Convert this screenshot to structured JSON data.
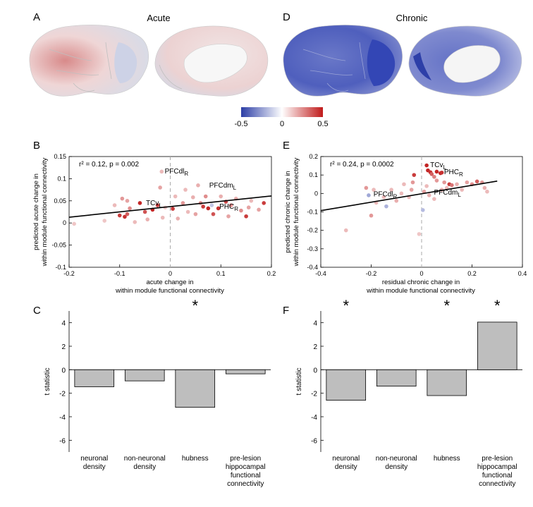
{
  "panel_letters": {
    "a": "A",
    "b": "B",
    "c": "C",
    "d": "D",
    "e": "E",
    "f": "F"
  },
  "brain_titles": {
    "acute": "Acute",
    "chronic": "Chronic"
  },
  "colorbar": {
    "ticks": [
      "-0.5",
      "0",
      "0.5"
    ],
    "colors": {
      "negative": "#2c3ea6",
      "zero": "#ffffff",
      "positive": "#c01a1a"
    }
  },
  "chart_data": [
    {
      "panel": "B",
      "type": "scatter",
      "stats": "r² = 0.12, p = 0.002",
      "xlabel_lines": [
        "acute change in",
        "within module functional connectivity"
      ],
      "ylabel_lines": [
        "predicted acute change in",
        "within module functional connectivity"
      ],
      "xlim": [
        -0.2,
        0.2
      ],
      "ylim": [
        -0.1,
        0.15
      ],
      "xticks": [
        "-0.2",
        "-0.1",
        "0",
        "0.1",
        "0.2"
      ],
      "yticks": [
        "-0.1",
        "-0.05",
        "0",
        "0.05",
        "0.1",
        "0.15"
      ],
      "fit_line": {
        "x": [
          -0.2,
          0.2
        ],
        "y": [
          0.013,
          0.061
        ]
      },
      "zero_line_x": 0,
      "point_labels": [
        {
          "x": -0.018,
          "y": 0.115,
          "base": "PFCdl",
          "sub": "R"
        },
        {
          "x": 0.07,
          "y": 0.083,
          "base": "PFCdm",
          "sub": "L"
        },
        {
          "x": -0.055,
          "y": 0.043,
          "base": "TCv",
          "sub": "L"
        },
        {
          "x": 0.09,
          "y": 0.035,
          "base": "PHC",
          "sub": "R"
        }
      ],
      "points": [
        {
          "x": -0.017,
          "y": 0.116,
          "c": 0.3
        },
        {
          "x": -0.19,
          "y": -0.002,
          "c": 0.25
        },
        {
          "x": -0.1,
          "y": 0.017,
          "c": 0.85
        },
        {
          "x": -0.09,
          "y": 0.014,
          "c": 0.9
        },
        {
          "x": -0.085,
          "y": 0.02,
          "c": 0.7
        },
        {
          "x": -0.095,
          "y": 0.055,
          "c": 0.45
        },
        {
          "x": -0.085,
          "y": 0.05,
          "c": 0.4
        },
        {
          "x": -0.08,
          "y": 0.033,
          "c": 0.5
        },
        {
          "x": -0.07,
          "y": 0.002,
          "c": 0.3
        },
        {
          "x": -0.06,
          "y": 0.045,
          "c": 0.95
        },
        {
          "x": -0.05,
          "y": 0.025,
          "c": 0.75
        },
        {
          "x": -0.045,
          "y": 0.008,
          "c": 0.35
        },
        {
          "x": -0.035,
          "y": 0.03,
          "c": 0.95
        },
        {
          "x": -0.025,
          "y": 0.04,
          "c": 0.85
        },
        {
          "x": -0.02,
          "y": 0.08,
          "c": 0.4
        },
        {
          "x": -0.015,
          "y": 0.012,
          "c": 0.3
        },
        {
          "x": -0.01,
          "y": 0.035,
          "c": 0.25
        },
        {
          "x": 0.005,
          "y": 0.032,
          "c": 0.85
        },
        {
          "x": 0.01,
          "y": 0.06,
          "c": 0.3
        },
        {
          "x": 0.015,
          "y": 0.01,
          "c": 0.35
        },
        {
          "x": 0.025,
          "y": 0.045,
          "c": 0.45
        },
        {
          "x": 0.03,
          "y": 0.075,
          "c": 0.3
        },
        {
          "x": 0.035,
          "y": 0.025,
          "c": 0.3
        },
        {
          "x": 0.045,
          "y": 0.058,
          "c": 0.35
        },
        {
          "x": 0.05,
          "y": 0.02,
          "c": 0.4
        },
        {
          "x": 0.055,
          "y": 0.085,
          "c": 0.35
        },
        {
          "x": 0.06,
          "y": 0.045,
          "c": 0.5
        },
        {
          "x": 0.065,
          "y": 0.037,
          "c": 0.85
        },
        {
          "x": 0.07,
          "y": 0.06,
          "c": 0.5
        },
        {
          "x": 0.075,
          "y": 0.033,
          "c": 0.95
        },
        {
          "x": 0.082,
          "y": 0.04,
          "c": -0.3
        },
        {
          "x": 0.085,
          "y": 0.02,
          "c": 0.75
        },
        {
          "x": 0.095,
          "y": 0.033,
          "c": 0.9
        },
        {
          "x": 0.1,
          "y": 0.06,
          "c": 0.35
        },
        {
          "x": 0.11,
          "y": 0.048,
          "c": 0.8
        },
        {
          "x": 0.115,
          "y": 0.015,
          "c": 0.4
        },
        {
          "x": 0.12,
          "y": 0.04,
          "c": 0.5
        },
        {
          "x": 0.13,
          "y": 0.055,
          "c": 0.35
        },
        {
          "x": 0.14,
          "y": 0.028,
          "c": 0.5
        },
        {
          "x": 0.15,
          "y": 0.015,
          "c": 0.85
        },
        {
          "x": 0.155,
          "y": 0.035,
          "c": 0.4
        },
        {
          "x": 0.16,
          "y": 0.05,
          "c": 0.3
        },
        {
          "x": 0.175,
          "y": 0.03,
          "c": 0.4
        },
        {
          "x": 0.185,
          "y": 0.045,
          "c": 0.85
        },
        {
          "x": -0.13,
          "y": 0.005,
          "c": 0.25
        },
        {
          "x": -0.11,
          "y": 0.04,
          "c": 0.3
        }
      ]
    },
    {
      "panel": "E",
      "type": "scatter",
      "stats": "r² = 0.24, p = 0.0002",
      "xlabel_lines": [
        "residual chronic change in",
        "within module functional connectivity"
      ],
      "ylabel_lines": [
        "predicted chronic change in",
        "within module functional connectivity"
      ],
      "xlim": [
        -0.4,
        0.4
      ],
      "ylim": [
        -0.4,
        0.2
      ],
      "xticks": [
        "-0.4",
        "-0.2",
        "0",
        "0.2",
        "0.4"
      ],
      "yticks": [
        "-0.4",
        "-0.3",
        "-0.2",
        "-0.1",
        "0",
        "0.1",
        "0.2"
      ],
      "fit_line": {
        "x": [
          -0.4,
          0.3
        ],
        "y": [
          -0.093,
          0.067
        ]
      },
      "zero_line_x": 0,
      "point_labels": [
        {
          "x": 0.02,
          "y": 0.15,
          "base": "TCv",
          "sub": "L"
        },
        {
          "x": 0.075,
          "y": 0.112,
          "base": "PHC",
          "sub": "R"
        },
        {
          "x": -0.205,
          "y": -0.008,
          "base": "PFCdl",
          "sub": "R"
        },
        {
          "x": 0.035,
          "y": 0.002,
          "base": "PFCdm",
          "sub": "L"
        }
      ],
      "points": [
        {
          "x": 0.02,
          "y": 0.152,
          "c": 0.95
        },
        {
          "x": 0.025,
          "y": 0.125,
          "c": 0.95
        },
        {
          "x": 0.035,
          "y": 0.115,
          "c": 0.9
        },
        {
          "x": 0.04,
          "y": 0.105,
          "c": 0.7
        },
        {
          "x": 0.06,
          "y": 0.118,
          "c": 0.95
        },
        {
          "x": 0.075,
          "y": 0.11,
          "c": 0.95
        },
        {
          "x": 0.08,
          "y": 0.113,
          "c": 0.9
        },
        {
          "x": 0.05,
          "y": 0.09,
          "c": 0.55
        },
        {
          "x": 0.06,
          "y": 0.07,
          "c": 0.45
        },
        {
          "x": 0.09,
          "y": 0.06,
          "c": 0.45
        },
        {
          "x": 0.11,
          "y": 0.05,
          "c": 0.85
        },
        {
          "x": 0.12,
          "y": 0.045,
          "c": 0.6
        },
        {
          "x": 0.14,
          "y": 0.05,
          "c": 0.35
        },
        {
          "x": 0.16,
          "y": 0.02,
          "c": 0.3
        },
        {
          "x": 0.18,
          "y": 0.06,
          "c": 0.4
        },
        {
          "x": 0.2,
          "y": 0.05,
          "c": 0.5
        },
        {
          "x": 0.22,
          "y": 0.065,
          "c": 0.7
        },
        {
          "x": 0.24,
          "y": 0.06,
          "c": 0.45
        },
        {
          "x": 0.25,
          "y": 0.03,
          "c": 0.35
        },
        {
          "x": 0.26,
          "y": 0.01,
          "c": 0.3
        },
        {
          "x": 0.1,
          "y": 0.03,
          "c": 0.3
        },
        {
          "x": 0.08,
          "y": 0.02,
          "c": 0.35
        },
        {
          "x": 0.05,
          "y": -0.03,
          "c": 0.3
        },
        {
          "x": 0.03,
          "y": -0.01,
          "c": 0.35
        },
        {
          "x": 0.02,
          "y": 0.04,
          "c": 0.3
        },
        {
          "x": 0.01,
          "y": 0.01,
          "c": 0.4
        },
        {
          "x": 0.005,
          "y": -0.09,
          "c": -0.35
        },
        {
          "x": -0.03,
          "y": 0.1,
          "c": 0.85
        },
        {
          "x": -0.035,
          "y": 0.06,
          "c": 0.45
        },
        {
          "x": -0.04,
          "y": 0.02,
          "c": 0.4
        },
        {
          "x": -0.05,
          "y": -0.02,
          "c": 0.3
        },
        {
          "x": -0.07,
          "y": 0.05,
          "c": 0.3
        },
        {
          "x": -0.08,
          "y": 0.0,
          "c": 0.3
        },
        {
          "x": -0.1,
          "y": -0.04,
          "c": 0.35
        },
        {
          "x": -0.12,
          "y": 0.02,
          "c": 0.3
        },
        {
          "x": -0.14,
          "y": -0.07,
          "c": -0.4
        },
        {
          "x": -0.15,
          "y": -0.02,
          "c": 0.3
        },
        {
          "x": -0.2,
          "y": -0.12,
          "c": 0.45
        },
        {
          "x": -0.21,
          "y": -0.01,
          "c": -0.45
        },
        {
          "x": -0.22,
          "y": 0.03,
          "c": 0.45
        },
        {
          "x": -0.19,
          "y": 0.02,
          "c": 0.3
        },
        {
          "x": -0.18,
          "y": -0.05,
          "c": 0.3
        },
        {
          "x": -0.3,
          "y": -0.2,
          "c": 0.3
        },
        {
          "x": -0.01,
          "y": -0.22,
          "c": 0.25
        }
      ]
    },
    {
      "panel": "C",
      "type": "bar",
      "ylabel": "t statistic",
      "ylim": [
        -7,
        5
      ],
      "yticks": [
        "-6",
        "-4",
        "-2",
        "0",
        "2",
        "4"
      ],
      "categories": [
        [
          "neuronal",
          "density"
        ],
        [
          "non-neuronal",
          "density"
        ],
        [
          "hubness"
        ],
        [
          "pre-lesion",
          "hippocampal",
          "functional",
          "connectivity"
        ]
      ],
      "values": [
        -1.45,
        -0.95,
        -3.2,
        -0.35
      ],
      "significant": [
        false,
        false,
        true,
        false
      ],
      "significance_marker": "*",
      "bar_color": "#bebebe"
    },
    {
      "panel": "F",
      "type": "bar",
      "ylabel": "t statistic",
      "ylim": [
        -7,
        5
      ],
      "yticks": [
        "-6",
        "-4",
        "-2",
        "0",
        "2",
        "4"
      ],
      "categories": [
        [
          "neuronal",
          "density"
        ],
        [
          "non-neuronal",
          "density"
        ],
        [
          "hubness"
        ],
        [
          "pre-lesion",
          "hippocampal",
          "functional",
          "connectivity"
        ]
      ],
      "values": [
        -2.6,
        -1.4,
        -2.2,
        4.05
      ],
      "significant": [
        true,
        false,
        true,
        true
      ],
      "significance_marker": "*",
      "bar_color": "#bebebe"
    }
  ]
}
